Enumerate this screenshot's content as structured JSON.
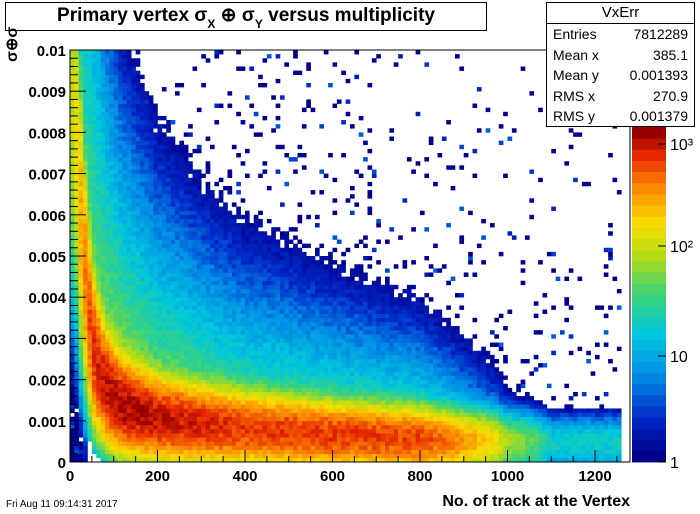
{
  "title": {
    "main": "Primary vertex σ",
    "sub_x": "X",
    "oplus": "⊕ σ",
    "sub_y": "Y",
    "rest": " versus multiplicity"
  },
  "stats": {
    "name": "VxErr",
    "rows": [
      {
        "label": "Entries",
        "value": "7812289"
      },
      {
        "label": "Mean x",
        "value": "385.1"
      },
      {
        "label": "Mean y",
        "value": "0.001393"
      },
      {
        "label": "RMS x",
        "value": "270.9"
      },
      {
        "label": "RMS y",
        "value": "0.001379"
      }
    ]
  },
  "footer": {
    "date": "Fri Aug 11 09:14:31 2017"
  },
  "chart_data": {
    "type": "heatmap",
    "title": "Primary vertex σX ⊕ σY versus multiplicity",
    "xlabel": "No. of track at the Vertex",
    "ylabel": "σ⊕σ",
    "xlim": [
      0,
      1280
    ],
    "ylim": [
      0,
      0.01
    ],
    "x_ticks": [
      "0",
      "200",
      "400",
      "600",
      "800",
      "1000",
      "1200"
    ],
    "y_ticks": [
      "0",
      "0.001",
      "0.002",
      "0.003",
      "0.004",
      "0.005",
      "0.006",
      "0.007",
      "0.008",
      "0.009",
      "0.01"
    ],
    "z_scale": "log",
    "z_ticks": [
      "1",
      "10",
      "10²",
      "10³"
    ],
    "ridge": {
      "x": [
        10,
        30,
        50,
        80,
        120,
        200,
        300,
        400,
        600,
        800,
        900,
        1000,
        1100
      ],
      "y": [
        0.0085,
        0.005,
        0.0028,
        0.0018,
        0.00135,
        0.00105,
        0.0009,
        0.0008,
        0.00065,
        0.00055,
        0.0005,
        0.00048,
        0.00045
      ],
      "peak_counts": [
        200,
        800,
        2000,
        3000,
        3500,
        3000,
        2500,
        2000,
        2000,
        1800,
        800,
        150,
        30
      ]
    }
  }
}
